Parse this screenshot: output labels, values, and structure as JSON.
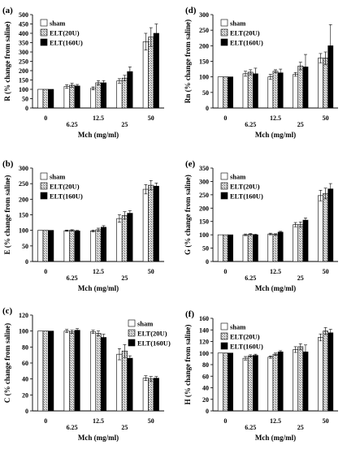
{
  "figure": {
    "series_names": [
      "sham",
      "ELT(20U)",
      "ELT(160U)"
    ],
    "categories": [
      "0",
      "6.25",
      "12.5",
      "25",
      "50"
    ],
    "xlabel": "Mch (mg/ml)"
  },
  "colors": {
    "sham": "#ffffff",
    "elt20": "#bdbdbd",
    "elt160": "#000000",
    "axis": "#000000"
  },
  "chart_data": [
    {
      "id": "a",
      "panel_label": "(a)",
      "type": "bar",
      "ylabel": "R (% change from saline)",
      "ylim": [
        0,
        500
      ],
      "ytick_step": 50,
      "yticks": [
        "0",
        "50",
        "100",
        "150",
        "200",
        "250",
        "300",
        "350",
        "400",
        "450",
        "500"
      ],
      "categories": [
        "0",
        "6.25",
        "12.5",
        "25",
        "50"
      ],
      "xlabel": "Mch (mg/ml)",
      "legend": "top-left",
      "series": [
        {
          "name": "sham",
          "values": [
            100,
            115,
            105,
            145,
            355
          ],
          "errors": [
            0,
            10,
            8,
            12,
            45
          ]
        },
        {
          "name": "ELT(20U)",
          "values": [
            100,
            122,
            135,
            160,
            380
          ],
          "errors": [
            0,
            10,
            12,
            15,
            50
          ]
        },
        {
          "name": "ELT(160U)",
          "values": [
            100,
            118,
            135,
            195,
            400
          ],
          "errors": [
            0,
            8,
            12,
            25,
            50
          ]
        }
      ]
    },
    {
      "id": "d",
      "panel_label": "(d)",
      "type": "bar",
      "ylabel": "Rn (% change from saline)",
      "ylim": [
        0,
        300
      ],
      "ytick_step": 50,
      "yticks": [
        "0",
        "50",
        "100",
        "150",
        "200",
        "250",
        "300"
      ],
      "categories": [
        "0",
        "6.25",
        "12.5",
        "25",
        "50"
      ],
      "xlabel": "Mch (mg/ml)",
      "legend": "top-left",
      "series": [
        {
          "name": "sham",
          "values": [
            100,
            110,
            100,
            108,
            160
          ],
          "errors": [
            0,
            8,
            8,
            6,
            15
          ]
        },
        {
          "name": "ELT(20U)",
          "values": [
            100,
            115,
            118,
            135,
            160
          ],
          "errors": [
            0,
            8,
            5,
            12,
            20
          ]
        },
        {
          "name": "ELT(160U)",
          "values": [
            100,
            110,
            113,
            132,
            200
          ],
          "errors": [
            0,
            18,
            12,
            40,
            68
          ]
        }
      ]
    },
    {
      "id": "b",
      "panel_label": "(b)",
      "type": "bar",
      "ylabel": "E (% change from saline)",
      "ylim": [
        0,
        300
      ],
      "ytick_step": 50,
      "yticks": [
        "0",
        "50",
        "100",
        "150",
        "200",
        "250",
        "300"
      ],
      "categories": [
        "0",
        "6.25",
        "12.5",
        "25",
        "50"
      ],
      "xlabel": "Mch (mg/ml)",
      "legend": "top-left",
      "series": [
        {
          "name": "sham",
          "values": [
            100,
            99,
            98,
            138,
            232
          ],
          "errors": [
            0,
            2,
            3,
            12,
            15
          ]
        },
        {
          "name": "ELT(20U)",
          "values": [
            100,
            100,
            102,
            148,
            245
          ],
          "errors": [
            0,
            2,
            5,
            12,
            15
          ]
        },
        {
          "name": "ELT(160U)",
          "values": [
            100,
            98,
            110,
            155,
            242
          ],
          "errors": [
            0,
            2,
            5,
            8,
            10
          ]
        }
      ]
    },
    {
      "id": "e",
      "panel_label": "(e)",
      "type": "bar",
      "ylabel": "G (% change from saline)",
      "ylim": [
        0,
        350
      ],
      "ytick_step": 50,
      "yticks": [
        "0",
        "50",
        "100",
        "150",
        "200",
        "250",
        "300",
        "350"
      ],
      "categories": [
        "0",
        "6.25",
        "12.5",
        "25",
        "50"
      ],
      "xlabel": "Mch (mg/ml)",
      "legend": "top-left",
      "series": [
        {
          "name": "sham",
          "values": [
            100,
            100,
            103,
            138,
            247
          ],
          "errors": [
            0,
            3,
            3,
            8,
            20
          ]
        },
        {
          "name": "ELT(20U)",
          "values": [
            100,
            102,
            101,
            138,
            255
          ],
          "errors": [
            0,
            3,
            3,
            10,
            20
          ]
        },
        {
          "name": "ELT(160U)",
          "values": [
            100,
            100,
            110,
            155,
            272
          ],
          "errors": [
            0,
            2,
            3,
            8,
            20
          ]
        }
      ]
    },
    {
      "id": "c",
      "panel_label": "(c)",
      "type": "bar",
      "ylabel": "C (% change from saline)",
      "ylim": [
        0,
        120
      ],
      "ytick_step": 20,
      "yticks": [
        "0",
        "20",
        "40",
        "60",
        "80",
        "100",
        "120"
      ],
      "categories": [
        "0",
        "6.25",
        "12.5",
        "25",
        "50"
      ],
      "xlabel": "Mch (mg/ml)",
      "legend": "top-right",
      "series": [
        {
          "name": "sham",
          "values": [
            100,
            100,
            99,
            71,
            41
          ],
          "errors": [
            0,
            2,
            2,
            7,
            3
          ]
        },
        {
          "name": "ELT(20U)",
          "values": [
            100,
            99,
            97,
            75,
            40
          ],
          "errors": [
            0,
            2,
            3,
            8,
            3
          ]
        },
        {
          "name": "ELT(160U)",
          "values": [
            100,
            101,
            92,
            66,
            41
          ],
          "errors": [
            0,
            2,
            4,
            3,
            2
          ]
        }
      ]
    },
    {
      "id": "f",
      "panel_label": "(f)",
      "type": "bar",
      "ylabel": "H (% change from saline)",
      "ylim": [
        0,
        160
      ],
      "ytick_step": 20,
      "yticks": [
        "0",
        "20",
        "40",
        "60",
        "80",
        "100",
        "120",
        "140",
        "160"
      ],
      "categories": [
        "0",
        "6.25",
        "12.5",
        "25",
        "50"
      ],
      "xlabel": "Mch (mg/ml)",
      "legend": "top-left",
      "series": [
        {
          "name": "sham",
          "values": [
            100,
            91,
            93,
            106,
            127
          ],
          "errors": [
            0,
            3,
            2,
            5,
            6
          ]
        },
        {
          "name": "ELT(20U)",
          "values": [
            100,
            95,
            98,
            111,
            138
          ],
          "errors": [
            0,
            2,
            2,
            5,
            6
          ]
        },
        {
          "name": "ELT(160U)",
          "values": [
            100,
            96,
            102,
            102,
            135
          ],
          "errors": [
            0,
            2,
            2,
            12,
            6
          ]
        }
      ]
    }
  ]
}
